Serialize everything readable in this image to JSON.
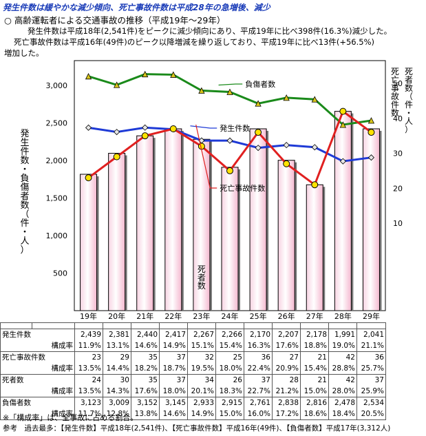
{
  "headline": "発生件数は緩やかな減少傾向、死亡事故件数は平成28年の急増後、減少",
  "section": "○ 高齢運転者による交通事故の推移（平成19年～29年）",
  "paragraphs": [
    "発生件数は平成18年(2,541件)をピークに減少傾向にあり、平成19年に比べ398件(16.3%)減少した。",
    "死亡事故件数は平成16年(49件)のピーク以降増減を繰り返しており、平成19年に比べ13件(+56.5%)",
    "増加した。"
  ],
  "chart_data": {
    "type": "bar",
    "categories": [
      "19年",
      "20年",
      "21年",
      "22年",
      "23年",
      "24年",
      "25年",
      "26年",
      "27年",
      "28年",
      "29年"
    ],
    "y_left": {
      "label": "発生件数・負傷者数（件・人）",
      "ticks": [
        500,
        1000,
        1500,
        2000,
        2500,
        3000
      ],
      "tick_labels": [
        "500",
        "1,000",
        "1,500",
        "2,000",
        "2,500",
        "3,000"
      ],
      "range": [
        0,
        3300
      ]
    },
    "y_right": {
      "label": "死亡事故件数・死者数（件・人）",
      "ticks": [
        10,
        20,
        30,
        40,
        50
      ],
      "tick_labels": [
        "10",
        "20",
        "30",
        "40",
        "50"
      ],
      "range": [
        -15,
        55
      ]
    },
    "bars": {
      "name": "死者数",
      "axis": "right",
      "values": [
        24,
        30,
        35,
        37,
        34,
        26,
        37,
        28,
        21,
        42,
        37
      ],
      "color": "#f4b8cf"
    },
    "series": [
      {
        "name": "負傷者数",
        "axis": "left",
        "color": "#1a8a1a",
        "marker": "#d7c51a",
        "values": [
          3123,
          3009,
          3152,
          3145,
          2933,
          2915,
          2761,
          2838,
          2816,
          2478,
          2534
        ]
      },
      {
        "name": "発生件数",
        "axis": "left",
        "color": "#1e3ad6",
        "marker": "#e6e6e6",
        "values": [
          2439,
          2381,
          2440,
          2417,
          2267,
          2266,
          2170,
          2207,
          2178,
          1991,
          2041
        ]
      },
      {
        "name": "死亡事故件数",
        "axis": "right",
        "color": "#e02020",
        "marker": "#ffe200",
        "values": [
          23,
          29,
          35,
          37,
          32,
          25,
          36,
          27,
          21,
          42,
          36
        ]
      }
    ]
  },
  "table": {
    "rows": [
      {
        "label": "発生件数",
        "ratio_label": "構成率",
        "values": [
          "2,439",
          "2,381",
          "2,440",
          "2,417",
          "2,267",
          "2,266",
          "2,170",
          "2,207",
          "2,178",
          "1,991",
          "2,041"
        ],
        "ratios": [
          "11.9%",
          "13.1%",
          "14.6%",
          "14.9%",
          "15.1%",
          "15.4%",
          "16.3%",
          "17.6%",
          "18.8%",
          "19.0%",
          "21.1%"
        ]
      },
      {
        "label": "死亡事故件数",
        "ratio_label": "構成率",
        "values": [
          "23",
          "29",
          "35",
          "37",
          "32",
          "25",
          "36",
          "27",
          "21",
          "42",
          "36"
        ],
        "ratios": [
          "13.5%",
          "14.4%",
          "18.2%",
          "18.7%",
          "19.5%",
          "18.0%",
          "22.4%",
          "20.9%",
          "15.4%",
          "28.8%",
          "25.7%"
        ]
      },
      {
        "label": "死者数",
        "ratio_label": "構成率",
        "values": [
          "24",
          "30",
          "35",
          "37",
          "34",
          "26",
          "37",
          "28",
          "21",
          "42",
          "37"
        ],
        "ratios": [
          "13.5%",
          "14.3%",
          "17.6%",
          "18.0%",
          "20.1%",
          "18.3%",
          "22.7%",
          "21.2%",
          "15.0%",
          "28.0%",
          "25.9%"
        ]
      },
      {
        "label": "負傷者数",
        "ratio_label": "構成率",
        "values": [
          "3,123",
          "3,009",
          "3,152",
          "3,145",
          "2,933",
          "2,915",
          "2,761",
          "2,838",
          "2,816",
          "2,478",
          "2,534"
        ],
        "ratios": [
          "11.7%",
          "12.8%",
          "13.8%",
          "14.6%",
          "14.9%",
          "15.0%",
          "16.0%",
          "17.2%",
          "18.6%",
          "18.4%",
          "20.5%"
        ]
      }
    ]
  },
  "notes": [
    "※「構成率」は、全事故に占める割合。",
    "参考　過去最多：【発生件数】平成18年(2,541件)、【死亡事故件数】平成16年(49件)、【負傷者数】平成17年(3,312人)"
  ]
}
